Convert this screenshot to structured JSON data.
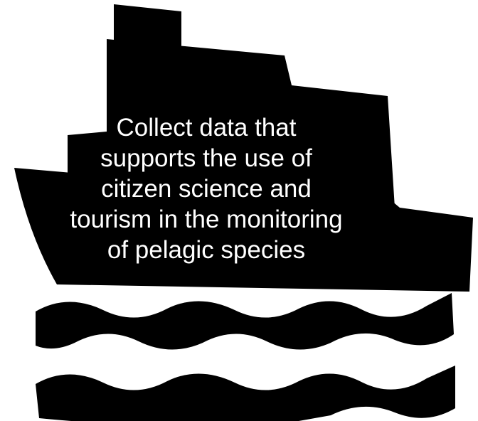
{
  "caption": {
    "lines": [
      "Collect data that",
      "supports the use of",
      "citizen science and",
      "tourism in the monitoring",
      "of pelagic species"
    ]
  },
  "colors": {
    "icon": "#000000",
    "background": "#ffffff",
    "text": "#ffffff"
  },
  "icons": {
    "ship": "ship-icon",
    "waves": "wave-icon"
  }
}
